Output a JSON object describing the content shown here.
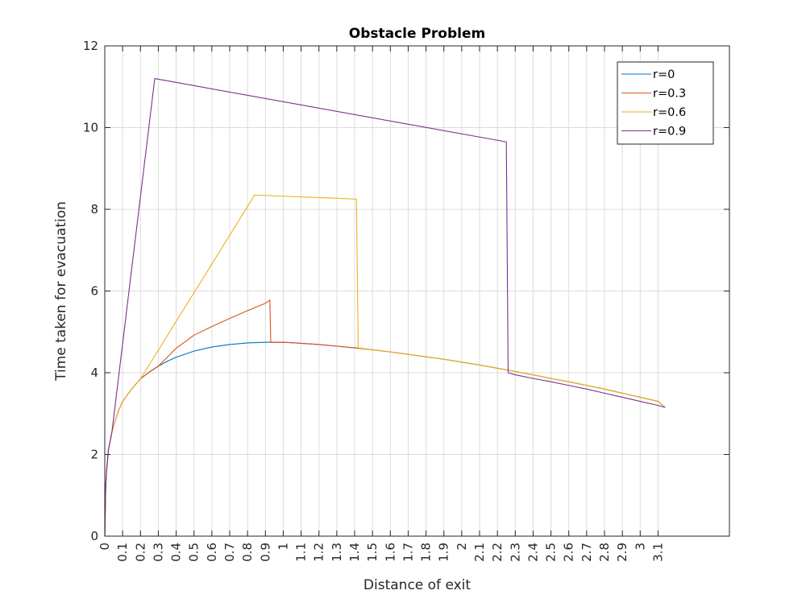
{
  "chart_data": {
    "type": "line",
    "title": "Obstacle Problem",
    "xlabel": "Distance of exit",
    "ylabel": "Time taken for evacuation",
    "xlim": [
      0,
      3.5
    ],
    "ylim": [
      0,
      12
    ],
    "xticks": [
      0,
      0.1,
      0.2,
      0.3,
      0.4,
      0.5,
      0.6,
      0.7,
      0.8,
      0.9,
      1,
      1.1,
      1.2,
      1.3,
      1.4,
      1.5,
      1.6,
      1.7,
      1.8,
      1.9,
      2,
      2.1,
      2.2,
      2.3,
      2.4,
      2.5,
      2.6,
      2.7,
      2.8,
      2.9,
      3,
      3.1
    ],
    "xtick_labels": [
      "0",
      "0.1",
      "0.2",
      "0.3",
      "0.4",
      "0.5",
      "0.6",
      "0.7",
      "0.8",
      "0.9",
      "1",
      "1.1",
      "1.2",
      "1.3",
      "1.4",
      "1.5",
      "1.6",
      "1.7",
      "1.8",
      "1.9",
      "2",
      "2.1",
      "2.2",
      "2.3",
      "2.4",
      "2.5",
      "2.6",
      "2.7",
      "2.8",
      "2.9",
      "3",
      "3.1"
    ],
    "yticks": [
      0,
      2,
      4,
      6,
      8,
      10,
      12
    ],
    "ytick_labels": [
      "0",
      "2",
      "4",
      "6",
      "8",
      "10",
      "12"
    ],
    "grid": true,
    "legend_position": "top-right",
    "series": [
      {
        "name": "r=0",
        "color": "#0072BD",
        "x": [
          0,
          0.005,
          0.01,
          0.02,
          0.04,
          0.06,
          0.08,
          0.1,
          0.15,
          0.2,
          0.25,
          0.3,
          0.35,
          0.4,
          0.5,
          0.6,
          0.7,
          0.8,
          0.9,
          0.95,
          1.0,
          1.05,
          1.1,
          1.2,
          1.3,
          1.4,
          1.5,
          1.6,
          1.7,
          1.8,
          1.9,
          2.0,
          2.1,
          2.2,
          2.3,
          2.4,
          2.5,
          2.6,
          2.7,
          2.8,
          2.9,
          3.0,
          3.1,
          3.14
        ],
        "y": [
          0,
          1.2,
          1.6,
          2.1,
          2.55,
          2.85,
          3.1,
          3.3,
          3.6,
          3.85,
          4.02,
          4.16,
          4.28,
          4.38,
          4.53,
          4.63,
          4.69,
          4.73,
          4.745,
          4.748,
          4.745,
          4.735,
          4.72,
          4.69,
          4.65,
          4.61,
          4.56,
          4.51,
          4.45,
          4.39,
          4.33,
          4.26,
          4.19,
          4.11,
          4.03,
          3.95,
          3.86,
          3.78,
          3.69,
          3.6,
          3.5,
          3.4,
          3.3,
          3.15
        ]
      },
      {
        "name": "r=0.3",
        "color": "#D95319",
        "x": [
          0,
          0.005,
          0.01,
          0.02,
          0.04,
          0.06,
          0.08,
          0.1,
          0.15,
          0.2,
          0.25,
          0.3,
          0.35,
          0.4,
          0.5,
          0.6,
          0.7,
          0.8,
          0.9,
          0.92,
          0.925,
          0.93,
          0.95,
          1.0,
          1.05,
          1.1,
          1.2,
          1.3,
          1.4,
          1.5,
          1.6,
          1.7,
          1.8,
          1.9,
          2.0,
          2.1,
          2.2,
          2.3,
          2.4,
          2.5,
          2.6,
          2.7,
          2.8,
          2.9,
          3.0,
          3.1,
          3.14
        ],
        "y": [
          0,
          1.2,
          1.6,
          2.1,
          2.55,
          2.85,
          3.1,
          3.3,
          3.6,
          3.85,
          4.02,
          4.16,
          4.38,
          4.6,
          4.92,
          5.13,
          5.33,
          5.52,
          5.7,
          5.76,
          5.78,
          4.745,
          4.748,
          4.745,
          4.735,
          4.72,
          4.69,
          4.65,
          4.61,
          4.56,
          4.51,
          4.45,
          4.39,
          4.33,
          4.26,
          4.19,
          4.11,
          4.03,
          3.95,
          3.86,
          3.78,
          3.69,
          3.6,
          3.5,
          3.4,
          3.3,
          3.15
        ]
      },
      {
        "name": "r=0.6",
        "color": "#EDB120",
        "x": [
          0,
          0.005,
          0.01,
          0.02,
          0.04,
          0.06,
          0.08,
          0.1,
          0.15,
          0.2,
          0.84,
          1.41,
          1.42,
          1.5,
          1.6,
          1.7,
          1.8,
          1.9,
          2.0,
          2.1,
          2.2,
          2.3,
          2.4,
          2.5,
          2.6,
          2.7,
          2.8,
          2.9,
          3.0,
          3.1,
          3.14
        ],
        "y": [
          0,
          1.2,
          1.6,
          2.1,
          2.55,
          2.85,
          3.1,
          3.3,
          3.6,
          3.85,
          8.35,
          8.25,
          4.61,
          4.56,
          4.51,
          4.45,
          4.39,
          4.33,
          4.26,
          4.19,
          4.11,
          4.03,
          3.95,
          3.86,
          3.78,
          3.69,
          3.6,
          3.5,
          3.4,
          3.3,
          3.15
        ]
      },
      {
        "name": "r=0.9",
        "color": "#7E2F8E",
        "x": [
          0,
          0.005,
          0.01,
          0.02,
          0.04,
          0.28,
          2.25,
          2.26,
          2.3,
          2.4,
          2.5,
          2.6,
          2.7,
          2.8,
          2.9,
          3.0,
          3.1,
          3.14
        ],
        "y": [
          0,
          1.2,
          1.6,
          2.1,
          2.55,
          11.2,
          9.65,
          4.0,
          3.95,
          3.86,
          3.78,
          3.69,
          3.6,
          3.5,
          3.4,
          3.3,
          3.2,
          3.15
        ]
      }
    ]
  }
}
